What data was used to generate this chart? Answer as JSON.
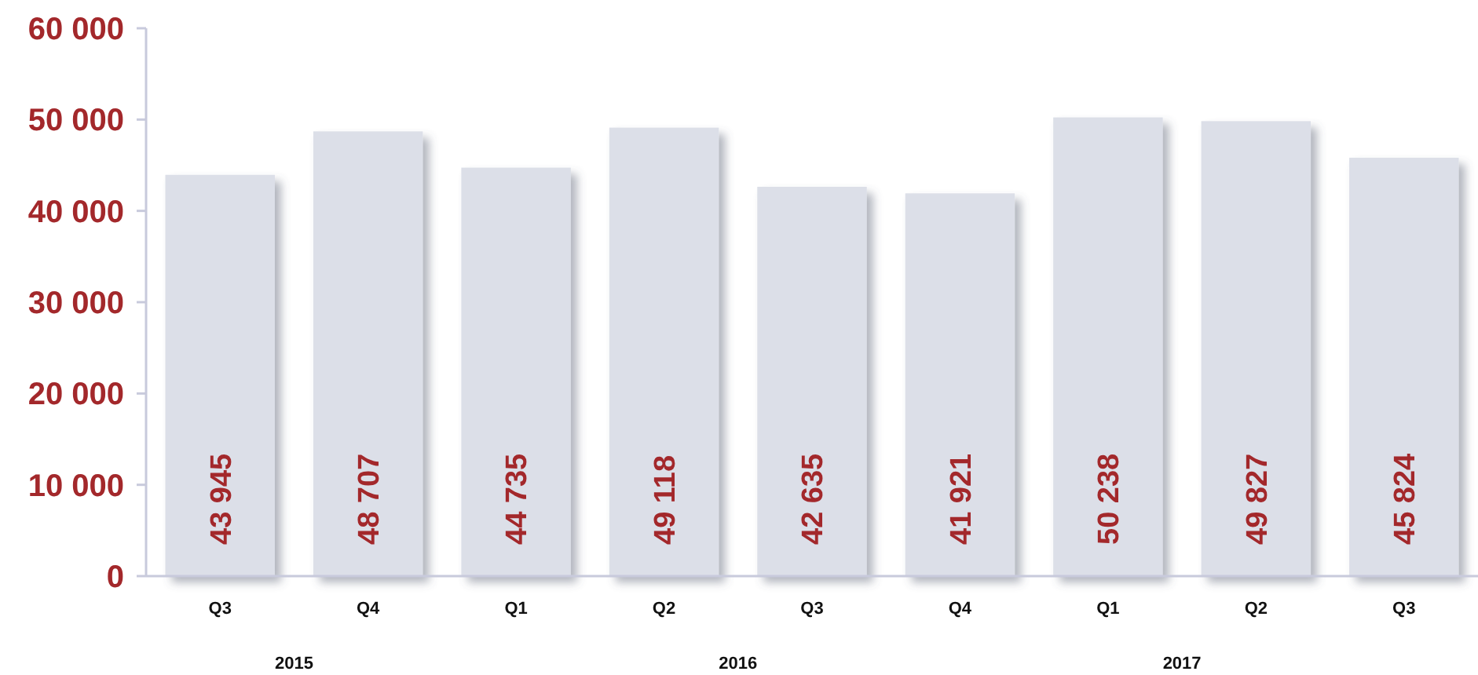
{
  "chart_data": {
    "type": "bar",
    "categories": [
      "Q3",
      "Q4",
      "Q1",
      "Q2",
      "Q3",
      "Q4",
      "Q1",
      "Q2",
      "Q3"
    ],
    "values": [
      43945,
      48707,
      44735,
      49118,
      42635,
      41921,
      50238,
      49827,
      45824
    ],
    "value_labels": [
      "43 945",
      "48 707",
      "44 735",
      "49 118",
      "42 635",
      "41 921",
      "50 238",
      "49 827",
      "45 824"
    ],
    "color": "#dcdfe8",
    "ylim": [
      0,
      60000
    ],
    "yticks": [
      0,
      {
        "value": 10000,
        "label": "10 000"
      },
      {
        "value": 20000,
        "label": "20 000"
      },
      {
        "value": 30000,
        "label": "30 000"
      },
      {
        "value": 40000,
        "label": "40 000"
      },
      {
        "value": 50000,
        "label": "50 000"
      },
      {
        "value": 60000,
        "label": "60 000"
      }
    ],
    "annotations": [
      "2015",
      "2016",
      "2017"
    ],
    "grid": false
  }
}
